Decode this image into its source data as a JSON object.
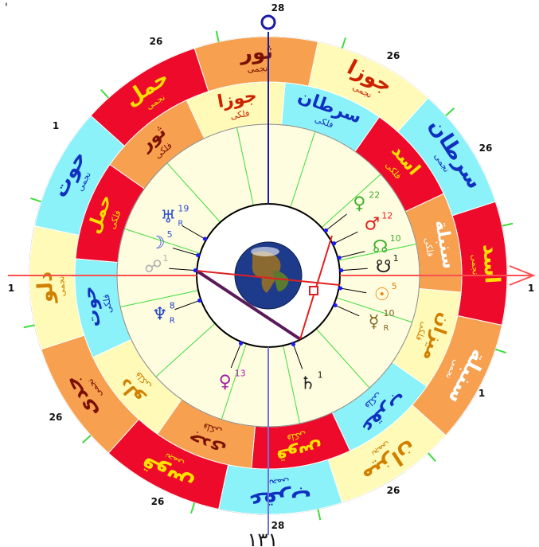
{
  "colors": {
    "fire": "#ee0a2a",
    "earth": "#f6a050",
    "air": "#fffab8",
    "water": "#8af2f8",
    "inner_fill": "#fffde0",
    "house_line": "#3ddc3d",
    "axis_blue": "#1a1aa8",
    "axis_red": "#ff5050",
    "aspect": "#5a1a5a"
  },
  "outer_ring": [
    {
      "label": "جوزا",
      "sub": "نجمی",
      "el": "air",
      "fg": "#cc2200"
    },
    {
      "label": "سرطان",
      "sub": "نجمی",
      "el": "water",
      "fg": "#1030c0"
    },
    {
      "label": "اسد",
      "sub": "نجمی",
      "el": "fire",
      "fg": "#ffe000"
    },
    {
      "label": "سنبلة",
      "sub": "نجمی",
      "el": "earth",
      "fg": "#ffffff"
    },
    {
      "label": "میزان",
      "sub": "نجمی",
      "el": "air",
      "fg": "#d08000"
    },
    {
      "label": "عقرب",
      "sub": "نجمی",
      "el": "water",
      "fg": "#1030c0"
    },
    {
      "label": "قوس",
      "sub": "نجمی",
      "el": "fire",
      "fg": "#ffe000"
    },
    {
      "label": "جدی",
      "sub": "نجمی",
      "el": "earth",
      "fg": "#7a1000"
    },
    {
      "label": "دلو",
      "sub": "نجمی",
      "el": "air",
      "fg": "#d08000"
    },
    {
      "label": "حوت",
      "sub": "نجمی",
      "el": "water",
      "fg": "#1030c0"
    },
    {
      "label": "حمل",
      "sub": "نجمی",
      "el": "fire",
      "fg": "#ffe000"
    },
    {
      "label": "ثور",
      "sub": "نجمی",
      "el": "earth",
      "fg": "#7a1000"
    }
  ],
  "inner_ring": [
    {
      "label": "سرطان",
      "sub": "فلکی",
      "el": "water",
      "fg": "#1030c0"
    },
    {
      "label": "اسد",
      "sub": "فلکی",
      "el": "fire",
      "fg": "#ffe000"
    },
    {
      "label": "سنبلة",
      "sub": "فلکی",
      "el": "earth",
      "fg": "#ffffff"
    },
    {
      "label": "میزان",
      "sub": "فلکی",
      "el": "air",
      "fg": "#d08000"
    },
    {
      "label": "عقرب",
      "sub": "فلکی",
      "el": "water",
      "fg": "#1030c0"
    },
    {
      "label": "قوس",
      "sub": "فلکی",
      "el": "fire",
      "fg": "#ffe000"
    },
    {
      "label": "جدی",
      "sub": "فلکی",
      "el": "earth",
      "fg": "#7a1000"
    },
    {
      "label": "دلو",
      "sub": "فلکی",
      "el": "air",
      "fg": "#d08000"
    },
    {
      "label": "حوت",
      "sub": "فلکی",
      "el": "water",
      "fg": "#1030c0"
    },
    {
      "label": "حمل",
      "sub": "فلکی",
      "el": "fire",
      "fg": "#ffe000"
    },
    {
      "label": "ثور",
      "sub": "فلکی",
      "el": "earth",
      "fg": "#7a1000"
    },
    {
      "label": "جوزا",
      "sub": "فلکی",
      "el": "air",
      "fg": "#cc2200"
    }
  ],
  "cusp_labels": [
    "28",
    "26",
    "26",
    "1",
    "1",
    "26",
    "28",
    "26",
    "26",
    "1",
    "1",
    "26"
  ],
  "planets": [
    {
      "glyph": "♀",
      "deg": "22",
      "retro": "",
      "color": "#40b030",
      "name": "venus"
    },
    {
      "glyph": "♂",
      "deg": "12",
      "retro": "",
      "color": "#e02020",
      "name": "mars"
    },
    {
      "glyph": "☊",
      "deg": "10",
      "retro": "",
      "color": "#40b030",
      "name": "north-node"
    },
    {
      "glyph": "☋",
      "deg": "1",
      "retro": "",
      "color": "#202020",
      "name": "south-node"
    },
    {
      "glyph": "☉",
      "deg": "5",
      "retro": "",
      "color": "#f08000",
      "name": "sun"
    },
    {
      "glyph": "☿",
      "deg": "10",
      "retro": "R",
      "color": "#806020",
      "name": "mercury"
    },
    {
      "glyph": "♄",
      "deg": "1",
      "retro": "",
      "color": "#202020",
      "name": "saturn"
    },
    {
      "glyph": "♀",
      "deg": "13",
      "retro": "",
      "color": "#a020a0",
      "name": "pluto"
    },
    {
      "glyph": "♆",
      "deg": "8",
      "retro": "R",
      "color": "#2040c0",
      "name": "neptune"
    },
    {
      "glyph": "☍",
      "deg": "1",
      "retro": "",
      "color": "#b0b0b0",
      "name": "lilith"
    },
    {
      "glyph": "☽",
      "deg": "5",
      "retro": "",
      "color": "#3050d0",
      "name": "moon"
    },
    {
      "glyph": "♅",
      "deg": "19",
      "retro": "R",
      "color": "#3050d0",
      "name": "uranus"
    }
  ],
  "bottom_text": "١٣١",
  "corner_mark": "'"
}
